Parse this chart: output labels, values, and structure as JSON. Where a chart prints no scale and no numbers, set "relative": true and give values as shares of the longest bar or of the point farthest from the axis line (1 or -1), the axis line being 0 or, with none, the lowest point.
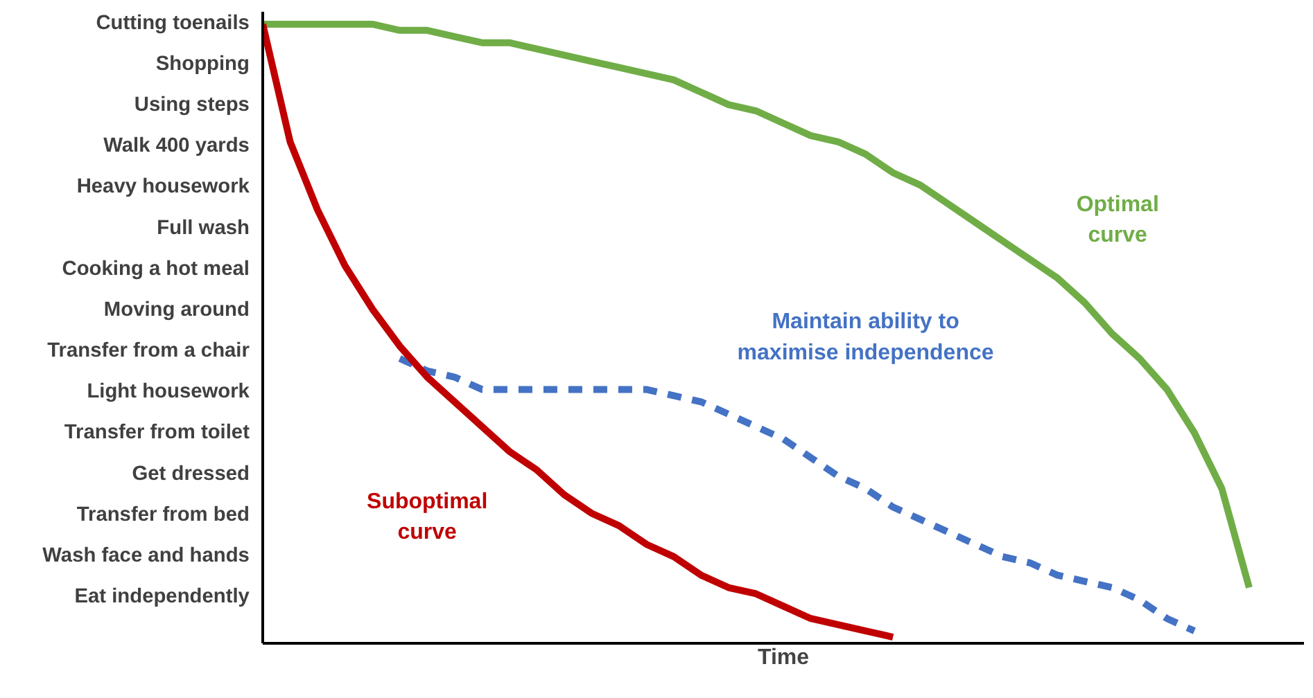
{
  "chart_data": {
    "type": "line",
    "xlabel": "Time",
    "relative": true,
    "categories": [
      null,
      null,
      null,
      null,
      null,
      null,
      null,
      null,
      null,
      null,
      null,
      null,
      null,
      null,
      null,
      null,
      null,
      null,
      null,
      null,
      null,
      null,
      null,
      null,
      null,
      null,
      null,
      null,
      null,
      null,
      null,
      null,
      null,
      null,
      null,
      null,
      null,
      null,
      null
    ],
    "series": [
      {
        "color": "#70ad47",
        "line_style": "solid",
        "values": [
          1.0,
          1.0,
          1.0,
          1.0,
          1.0,
          0.99,
          0.99,
          0.98,
          0.97,
          0.97,
          0.96,
          0.95,
          0.94,
          0.93,
          0.92,
          0.91,
          0.89,
          0.87,
          0.86,
          0.84,
          0.82,
          0.81,
          0.79,
          0.76,
          0.74,
          0.71,
          0.68,
          0.65,
          0.62,
          0.59,
          0.55,
          0.5,
          0.46,
          0.41,
          0.34,
          0.25,
          0.09,
          null,
          null
        ]
      },
      {
        "color": "#4472c4",
        "line_style": "dashed",
        "values": [
          null,
          null,
          null,
          null,
          null,
          0.46,
          0.44,
          0.43,
          0.41,
          0.41,
          0.41,
          0.41,
          0.41,
          0.41,
          0.41,
          0.4,
          0.39,
          0.37,
          0.35,
          0.33,
          0.3,
          0.27,
          0.25,
          0.22,
          0.2,
          0.18,
          0.16,
          0.14,
          0.13,
          0.11,
          0.1,
          0.09,
          0.07,
          0.04,
          0.02,
          null,
          null,
          null,
          null
        ]
      },
      {
        "color": "#c00000",
        "line_style": "solid",
        "values": [
          1.0,
          0.81,
          0.7,
          0.61,
          0.54,
          0.48,
          0.43,
          0.39,
          0.35,
          0.31,
          0.28,
          0.24,
          0.21,
          0.19,
          0.16,
          0.14,
          0.11,
          0.09,
          0.08,
          0.06,
          0.04,
          0.03,
          0.02,
          0.01,
          null,
          null,
          null,
          null,
          null,
          null,
          null,
          null,
          null,
          null,
          null,
          null,
          null,
          null,
          null
        ]
      }
    ],
    "annotations": [
      "Cutting toenails",
      "Shopping",
      "Using steps",
      "Walk 400 yards",
      "Heavy housework",
      "Full wash",
      "Cooking a hot meal",
      "Moving around",
      "Transfer from a chair",
      "Light housework",
      "Transfer from toilet",
      "Get dressed",
      "Transfer from bed",
      "Wash face and hands",
      "Eat independently",
      "Optimal\ncurve",
      "Maintain ability to\nmaximise independence",
      "Suboptimal\ncurve"
    ]
  }
}
